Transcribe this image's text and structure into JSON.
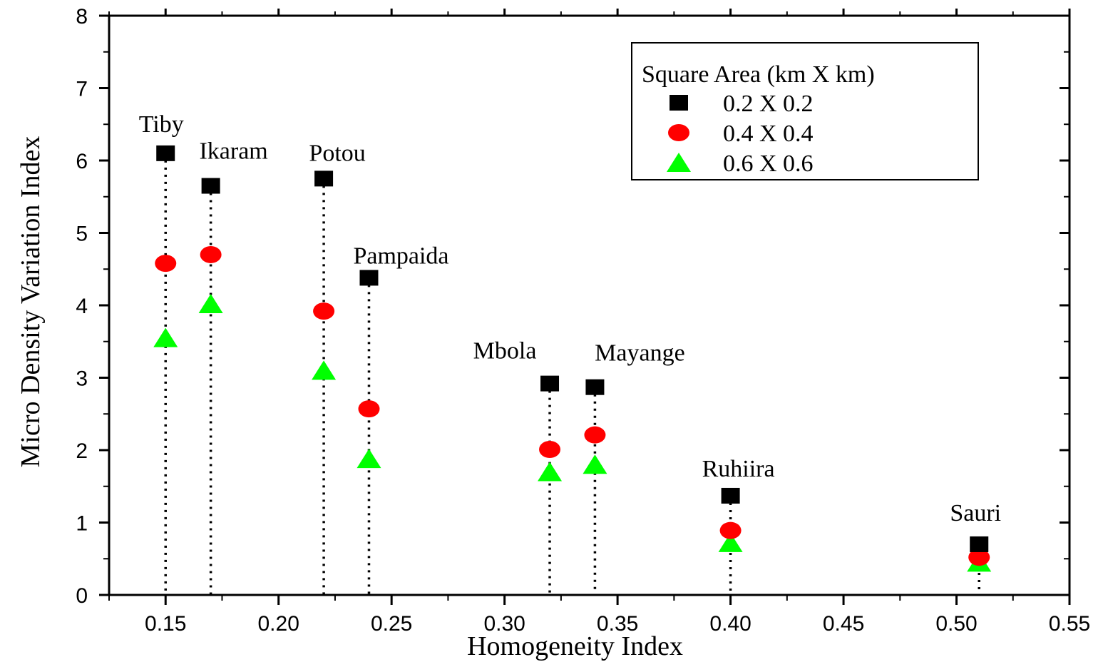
{
  "chart_data": {
    "type": "scatter",
    "xlabel": "Homogeneity Index",
    "ylabel": "Micro Density Variation Index",
    "xlim": [
      0.125,
      0.55
    ],
    "ylim": [
      0,
      8
    ],
    "xticks": [
      "0.15",
      "0.20",
      "0.25",
      "0.30",
      "0.35",
      "0.40",
      "0.45",
      "0.50",
      "0.55"
    ],
    "xtick_values": [
      0.15,
      0.2,
      0.25,
      0.3,
      0.35,
      0.4,
      0.45,
      0.5,
      0.55
    ],
    "yticks": [
      "0",
      "1",
      "2",
      "3",
      "4",
      "5",
      "6",
      "7",
      "8"
    ],
    "ytick_values": [
      0,
      1,
      2,
      3,
      4,
      5,
      6,
      7,
      8
    ],
    "grid": false,
    "legend_placement": "top-right",
    "legend_title": "Square Area (km X km)",
    "sites": [
      {
        "name": "Tiby",
        "x": 0.15
      },
      {
        "name": "Ikaram",
        "x": 0.17
      },
      {
        "name": "Potou",
        "x": 0.22
      },
      {
        "name": "Pampaida",
        "x": 0.24
      },
      {
        "name": "Mbola",
        "x": 0.32
      },
      {
        "name": "Mayange",
        "x": 0.34
      },
      {
        "name": "Ruhiira",
        "x": 0.4
      },
      {
        "name": "Sauri",
        "x": 0.51
      }
    ],
    "x": [
      0.15,
      0.17,
      0.22,
      0.24,
      0.32,
      0.34,
      0.4,
      0.51
    ],
    "series": [
      {
        "name": "0.2 X 0.2",
        "marker": "square",
        "color": "#000000",
        "values": [
          6.1,
          5.65,
          5.75,
          4.38,
          2.92,
          2.87,
          1.37,
          0.7
        ]
      },
      {
        "name": "0.4 X 0.4",
        "marker": "circle",
        "color": "#ff0000",
        "values": [
          4.58,
          4.7,
          3.92,
          2.57,
          2.01,
          2.21,
          0.89,
          0.52
        ]
      },
      {
        "name": "0.6 X 0.6",
        "marker": "triangle",
        "color": "#00ff00",
        "values": [
          3.55,
          4.02,
          3.1,
          1.88,
          1.7,
          1.8,
          0.72,
          0.45
        ]
      }
    ]
  }
}
